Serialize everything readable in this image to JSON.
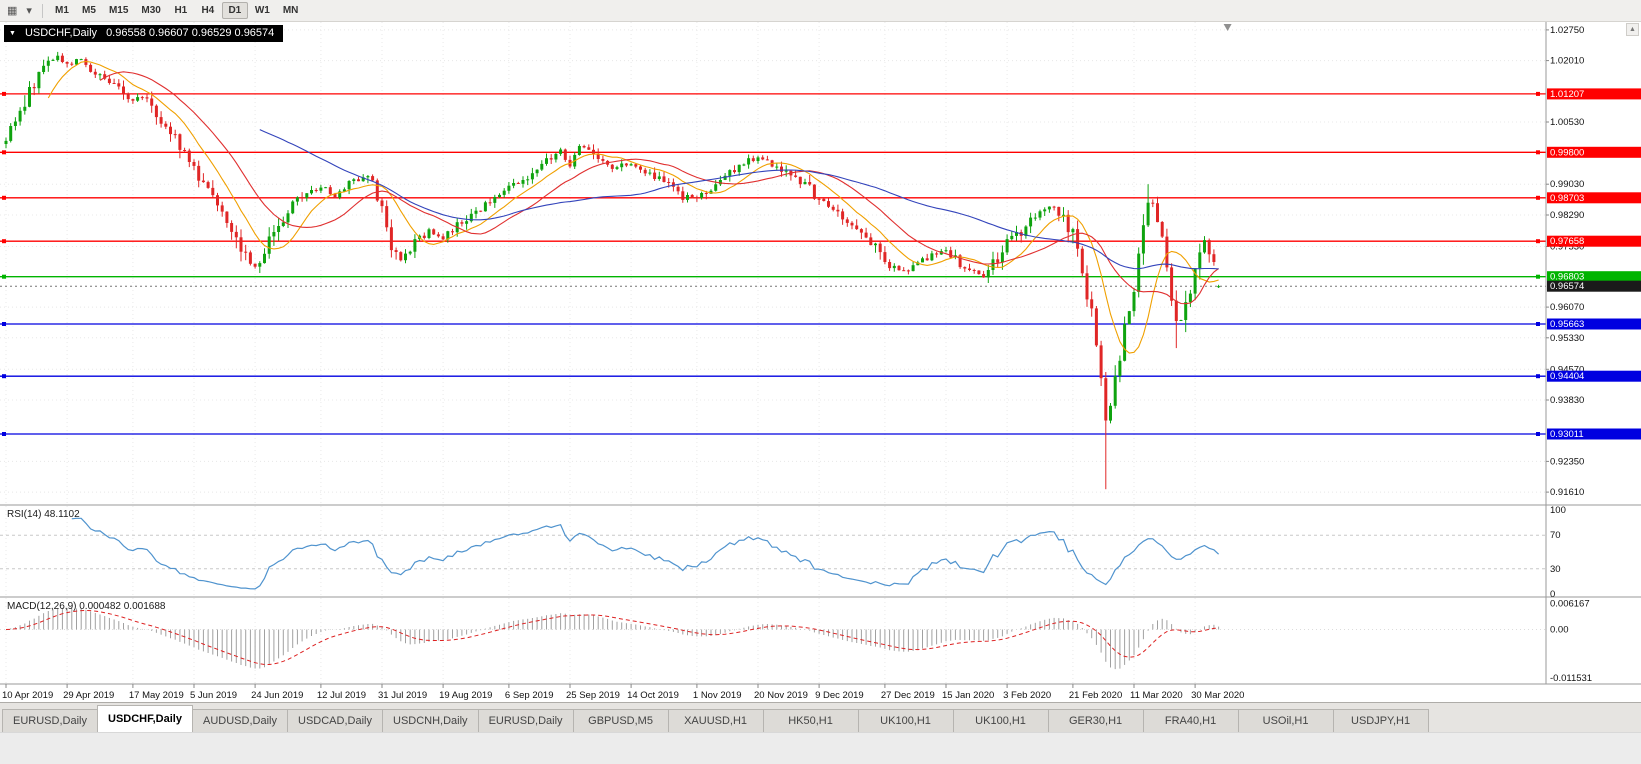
{
  "icons": {
    "charts_grid": "▦",
    "dropdown": "▾",
    "collapse": "▼",
    "scroll_up": "▲"
  },
  "toolbar": {
    "timeframes": [
      {
        "label": "M1",
        "active": false
      },
      {
        "label": "M5",
        "active": false
      },
      {
        "label": "M15",
        "active": false
      },
      {
        "label": "M30",
        "active": false
      },
      {
        "label": "H1",
        "active": false
      },
      {
        "label": "H4",
        "active": false
      },
      {
        "label": "D1",
        "active": true
      },
      {
        "label": "W1",
        "active": false
      },
      {
        "label": "MN",
        "active": false
      }
    ]
  },
  "chart": {
    "symbol_period": "USDCHF,Daily",
    "ohlc": "0.96558 0.96607 0.96529 0.96574"
  },
  "indicators": {
    "rsi_label": "RSI(14) 48.1102",
    "macd_label": "MACD(12,26,9) 0.000482 0.001688"
  },
  "tabs": [
    {
      "label": "EURUSD,Daily",
      "active": false
    },
    {
      "label": "USDCHF,Daily",
      "active": true
    },
    {
      "label": "AUDUSD,Daily",
      "active": false
    },
    {
      "label": "USDCAD,Daily",
      "active": false
    },
    {
      "label": "USDCNH,Daily",
      "active": false
    },
    {
      "label": "EURUSD,Daily",
      "active": false
    },
    {
      "label": "GBPUSD,M5",
      "active": false
    },
    {
      "label": "XAUUSD,H1",
      "active": false
    },
    {
      "label": "HK50,H1",
      "active": false
    },
    {
      "label": "UK100,H1",
      "active": false
    },
    {
      "label": "UK100,H1",
      "active": false
    },
    {
      "label": "GER30,H1",
      "active": false
    },
    {
      "label": "FRA40,H1",
      "active": false
    },
    {
      "label": "USOil,H1",
      "active": false
    },
    {
      "label": "USDJPY,H1",
      "active": false
    }
  ],
  "chart_data": {
    "type": "candlestick",
    "symbol": "USDCHF",
    "period": "Daily",
    "ohlc_display": {
      "open": "0.96558",
      "high": "0.96607",
      "low": "0.96529",
      "close": "0.96574"
    },
    "price_range": [
      0.913,
      1.0294
    ],
    "price_axis": {
      "labels": [
        "1.02750",
        "1.02010",
        "1.00530",
        "0.99030",
        "0.98290",
        "0.97530",
        "0.96070",
        "0.95330",
        "0.94570",
        "0.93830",
        "0.92350",
        "0.91610"
      ]
    },
    "levels": [
      {
        "label": "1.01207",
        "price": 1.01207,
        "color": "#ff0000",
        "type": "resistance"
      },
      {
        "label": "0.99800",
        "price": 0.998,
        "color": "#ff0000",
        "type": "resistance"
      },
      {
        "label": "0.98703",
        "price": 0.98703,
        "color": "#ff0000",
        "type": "resistance"
      },
      {
        "label": "0.97658",
        "price": 0.97658,
        "color": "#ff0000",
        "type": "resistance"
      },
      {
        "label": "0.96803",
        "price": 0.96803,
        "color": "#00b400",
        "type": "pivot"
      },
      {
        "label": "0.95663",
        "price": 0.95663,
        "color": "#0000e0",
        "type": "support"
      },
      {
        "label": "0.94404",
        "price": 0.94404,
        "color": "#0000e0",
        "type": "support"
      },
      {
        "label": "0.93011",
        "price": 0.93011,
        "color": "#0000e0",
        "type": "support"
      }
    ],
    "current_price": 0.96574,
    "current_price_color": "#1a1a1a",
    "x_labels": [
      [
        "10 Apr 2019",
        0
      ],
      [
        "29 Apr 2019",
        13
      ],
      [
        "17 May 2019",
        27
      ],
      [
        "5 Jun 2019",
        40
      ],
      [
        "24 Jun 2019",
        53
      ],
      [
        "12 Jul 2019",
        67
      ],
      [
        "31 Jul 2019",
        80
      ],
      [
        "19 Aug 2019",
        93
      ],
      [
        "6 Sep 2019",
        107
      ],
      [
        "25 Sep 2019",
        120
      ],
      [
        "14 Oct 2019",
        133
      ],
      [
        "1 Nov 2019",
        147
      ],
      [
        "20 Nov 2019",
        160
      ],
      [
        "9 Dec 2019",
        173
      ],
      [
        "27 Dec 2019",
        187
      ],
      [
        "15 Jan 2020",
        200
      ],
      [
        "3 Feb 2020",
        213
      ],
      [
        "21 Feb 2020",
        227
      ],
      [
        "11 Mar 2020",
        240
      ],
      [
        "30 Mar 2020",
        253
      ]
    ],
    "num_candles": 259,
    "close_anchors": [
      [
        0,
        1.0015
      ],
      [
        2,
        1.0045
      ],
      [
        5,
        1.0128
      ],
      [
        8,
        1.0185
      ],
      [
        11,
        1.0212
      ],
      [
        13,
        1.019
      ],
      [
        16,
        1.0205
      ],
      [
        19,
        1.0168
      ],
      [
        22,
        1.015
      ],
      [
        25,
        1.0125
      ],
      [
        27,
        1.0102
      ],
      [
        29,
        1.0118
      ],
      [
        32,
        1.0072
      ],
      [
        36,
        1.0018
      ],
      [
        40,
        0.9938
      ],
      [
        44,
        0.9885
      ],
      [
        48,
        0.9805
      ],
      [
        51,
        0.9732
      ],
      [
        53,
        0.97
      ],
      [
        55,
        0.9742
      ],
      [
        58,
        0.9802
      ],
      [
        61,
        0.9855
      ],
      [
        64,
        0.988
      ],
      [
        67,
        0.9898
      ],
      [
        70,
        0.9872
      ],
      [
        73,
        0.9905
      ],
      [
        77,
        0.9932
      ],
      [
        80,
        0.9838
      ],
      [
        82,
        0.9742
      ],
      [
        84,
        0.9725
      ],
      [
        87,
        0.976
      ],
      [
        90,
        0.9792
      ],
      [
        93,
        0.9772
      ],
      [
        96,
        0.9802
      ],
      [
        100,
        0.9838
      ],
      [
        104,
        0.9868
      ],
      [
        107,
        0.989
      ],
      [
        111,
        0.9925
      ],
      [
        114,
        0.9952
      ],
      [
        118,
        0.9982
      ],
      [
        120,
        0.9948
      ],
      [
        122,
        1.0002
      ],
      [
        126,
        0.9968
      ],
      [
        129,
        0.9938
      ],
      [
        133,
        0.9956
      ],
      [
        137,
        0.9928
      ],
      [
        141,
        0.9898
      ],
      [
        144,
        0.9872
      ],
      [
        147,
        0.9866
      ],
      [
        151,
        0.9905
      ],
      [
        155,
        0.994
      ],
      [
        158,
        0.9962
      ],
      [
        160,
        0.9968
      ],
      [
        164,
        0.9948
      ],
      [
        168,
        0.9918
      ],
      [
        171,
        0.9892
      ],
      [
        173,
        0.9862
      ],
      [
        177,
        0.9832
      ],
      [
        181,
        0.98
      ],
      [
        184,
        0.9762
      ],
      [
        187,
        0.9716
      ],
      [
        190,
        0.9692
      ],
      [
        193,
        0.9706
      ],
      [
        197,
        0.9732
      ],
      [
        200,
        0.9744
      ],
      [
        204,
        0.9702
      ],
      [
        208,
        0.9682
      ],
      [
        211,
        0.9722
      ],
      [
        213,
        0.9758
      ],
      [
        217,
        0.98
      ],
      [
        220,
        0.9842
      ],
      [
        223,
        0.9852
      ],
      [
        227,
        0.9778
      ],
      [
        229,
        0.9698
      ],
      [
        231,
        0.9592
      ],
      [
        233,
        0.9452
      ],
      [
        234,
        0.9335
      ],
      [
        236,
        0.9425
      ],
      [
        238,
        0.9565
      ],
      [
        240,
        0.9652
      ],
      [
        242,
        0.9788
      ],
      [
        243,
        0.9872
      ],
      [
        245,
        0.9832
      ],
      [
        247,
        0.9692
      ],
      [
        249,
        0.956
      ],
      [
        251,
        0.96
      ],
      [
        253,
        0.968
      ],
      [
        255,
        0.9762
      ],
      [
        256,
        0.9742
      ],
      [
        257,
        0.9698
      ],
      [
        258,
        0.96574
      ]
    ],
    "extremes": [
      {
        "index": 11,
        "high": 1.0222
      },
      {
        "index": 234,
        "low": 0.9168
      },
      {
        "index": 243,
        "high": 0.9903
      },
      {
        "index": 249,
        "low": 0.9508
      }
    ],
    "moving_averages": [
      {
        "period": 10,
        "color": "#f0a000"
      },
      {
        "period": 21,
        "color": "#e03030"
      },
      {
        "period": 55,
        "color": "#3344bb"
      }
    ],
    "rsi": {
      "period": 14,
      "value_display": "48.1102",
      "levels": [
        70,
        30
      ],
      "axis_labels": [
        "100",
        "70",
        "30",
        "0"
      ],
      "color": "#4f93ce"
    },
    "macd": {
      "fast": 12,
      "slow": 26,
      "signal_period": 9,
      "value_display": "0.000482",
      "signal_display": "0.001688",
      "axis_labels": [
        "0.006167",
        "0.00",
        "-0.011531"
      ],
      "range": [
        -0.0125,
        0.0068
      ],
      "hist_color": "#a0a0a0",
      "signal_color": "#dd2222"
    },
    "colors": {
      "candle_up": "#0fa30f",
      "candle_down": "#e02626",
      "grid": "#e8e8e8",
      "separator": "#9a9a9a",
      "axis_text": "#111111"
    }
  }
}
